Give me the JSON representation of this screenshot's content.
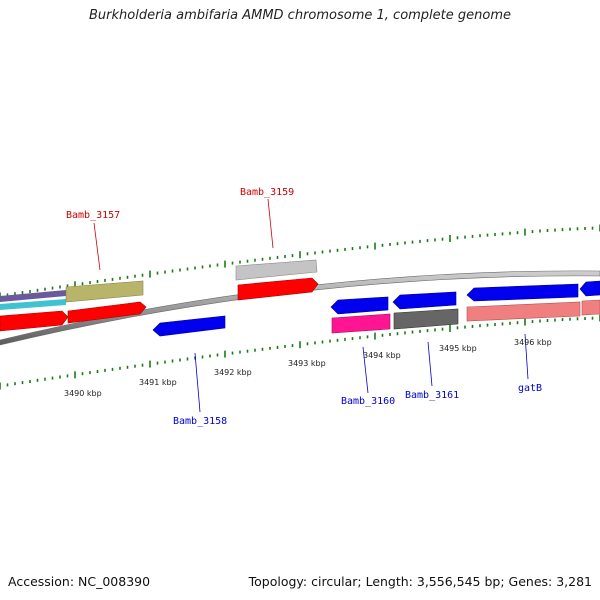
{
  "title": "Burkholderia ambifaria AMMD chromosome 1, complete genome",
  "footer": {
    "accession": "Accession: NC_008390",
    "topology": "Topology: circular; Length: 3,556,545 bp; Genes: 3,281"
  },
  "colors": {
    "red": "#ff0000",
    "blue": "#0000ee",
    "khaki": "#b8b46a",
    "silver": "#c4c4c4",
    "magenta": "#ff1493",
    "dark_gray": "#666666",
    "salmon": "#f08080",
    "cyan": "#00bcd4",
    "tick_green": "#1a7a1a",
    "backbone": "#888888",
    "label_red": "#cc0000",
    "label_blue": "#0000cc"
  },
  "scale_labels": [
    "3490 kbp",
    "3491 kbp",
    "3492 kbp",
    "3493 kbp",
    "3494 kbp",
    "3495 kbp",
    "3496 kbp"
  ],
  "gene_labels": [
    {
      "text": "Bamb_3157",
      "color": "red"
    },
    {
      "text": "Bamb_3159",
      "color": "red"
    },
    {
      "text": "Bamb_3158",
      "color": "blue"
    },
    {
      "text": "Bamb_3160",
      "color": "blue"
    },
    {
      "text": "Bamb_3161",
      "color": "blue"
    },
    {
      "text": "gatB",
      "color": "blue"
    }
  ]
}
